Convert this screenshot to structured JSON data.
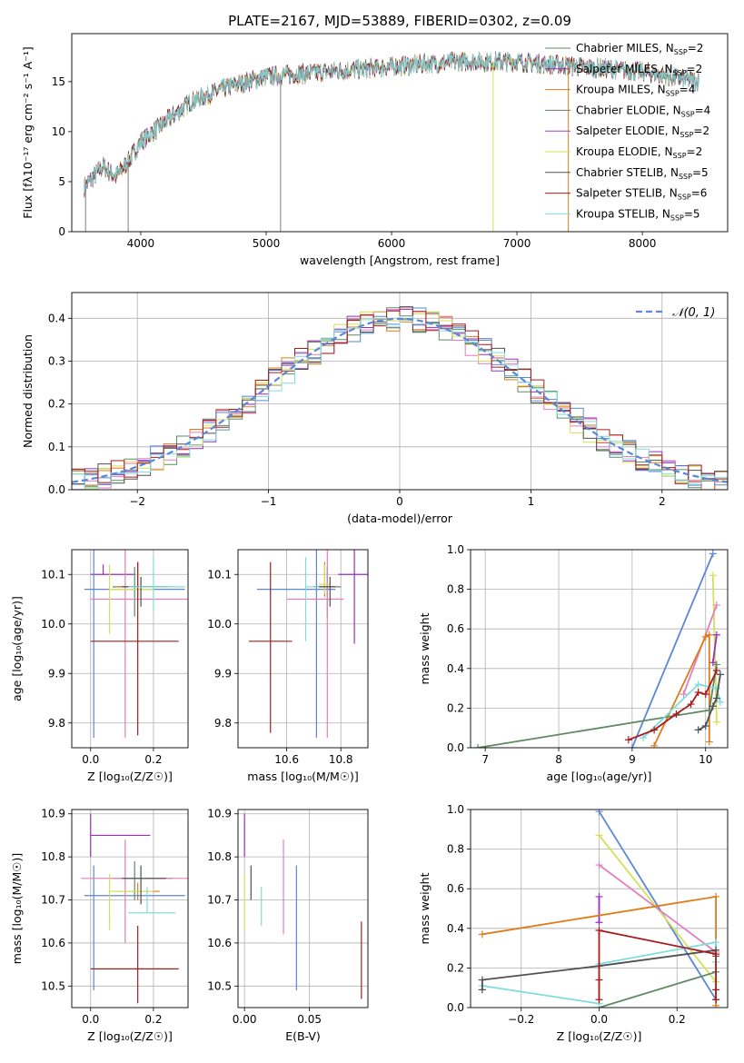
{
  "title": "PLATE=2167, MJD=53889, FIBERID=0302, z=0.09",
  "colors": {
    "Chabrier MILES": "#5e8a64",
    "Salpeter MILES": "#9b2fbf",
    "Kroupa MILES": "#e07b1a",
    "Chabrier ELODIE": "#5f8060",
    "Salpeter ELODIE": "#a23bc8",
    "Kroupa ELODIE": "#d4e05a",
    "Chabrier STELIB": "#505050",
    "Salpeter STELIB": "#a81c1c",
    "Kroupa STELIB": "#7fdcdc",
    "blue": "#5b87d6",
    "pink": "#e27fbf",
    "gray": "#808080"
  },
  "chart_data": [
    {
      "id": "spectrum",
      "type": "line",
      "xlabel": "wavelength [Angstrom, rest frame]",
      "ylabel": "Flux [fλ10⁻¹⁷ erg cm⁻² s⁻¹ A⁻¹]",
      "xlim": [
        3450,
        8680
      ],
      "ylim": [
        0,
        19.8
      ],
      "xticks": [
        4000,
        5000,
        6000,
        7000,
        8000
      ],
      "yticks": [
        0,
        5,
        10,
        15
      ],
      "grid": false,
      "legend_position": "right",
      "legend": [
        {
          "label": "Chabrier MILES, N",
          "sub": "SSP",
          "val": "=2"
        },
        {
          "label": "Salpeter MILES, N",
          "sub": "SSP",
          "val": "=2"
        },
        {
          "label": "Kroupa MILES, N",
          "sub": "SSP",
          "val": "=4"
        },
        {
          "label": "Chabrier ELODIE, N",
          "sub": "SSP",
          "val": "=4"
        },
        {
          "label": "Salpeter ELODIE, N",
          "sub": "SSP",
          "val": "=2"
        },
        {
          "label": "Kroupa ELODIE, N",
          "sub": "SSP",
          "val": "=2"
        },
        {
          "label": "Chabrier STELIB, N",
          "sub": "SSP",
          "val": "=5"
        },
        {
          "label": "Salpeter STELIB, N",
          "sub": "SSP",
          "val": "=6"
        },
        {
          "label": "Kroupa STELIB, N",
          "sub": "SSP",
          "val": "=5"
        }
      ],
      "continuum_anchors": [
        [
          3550,
          4.5
        ],
        [
          3700,
          6.5
        ],
        [
          3800,
          5.5
        ],
        [
          3900,
          7.0
        ],
        [
          4000,
          9.0
        ],
        [
          4200,
          11.0
        ],
        [
          4400,
          13.0
        ],
        [
          4700,
          14.5
        ],
        [
          5000,
          15.5
        ],
        [
          5500,
          16.0
        ],
        [
          6000,
          16.5
        ],
        [
          6500,
          17.0
        ],
        [
          7000,
          17.0
        ],
        [
          7500,
          16.5
        ],
        [
          8000,
          16.0
        ],
        [
          8450,
          15.0
        ]
      ],
      "spikes": [
        [
          5115,
          0
        ],
        [
          6810,
          0
        ],
        [
          7410,
          0
        ],
        [
          3900,
          0
        ],
        [
          3560,
          0
        ]
      ]
    },
    {
      "id": "residuals",
      "type": "line",
      "xlabel": "(data-model)/error",
      "ylabel": "Normed distribution",
      "xlim": [
        -2.5,
        2.5
      ],
      "ylim": [
        0,
        0.46
      ],
      "xticks": [
        -2,
        -1,
        0,
        1,
        2
      ],
      "yticks": [
        0.0,
        0.1,
        0.2,
        0.3,
        0.4
      ],
      "grid": true,
      "legend": "𝒩(0, 1)",
      "legend_position": "top-right",
      "gaussian": {
        "mean": 0,
        "sigma": 1
      }
    },
    {
      "id": "age_vs_Z",
      "type": "scatter",
      "xlabel": "Z [log₁₀(Z/Z☉)]",
      "ylabel": "age  [log₁₀(age/yr)]",
      "xlim": [
        -0.06,
        0.31
      ],
      "ylim": [
        9.75,
        10.15
      ],
      "xticks": [
        0.0,
        0.2
      ],
      "yticks": [
        9.8,
        9.9,
        10.0,
        10.1
      ],
      "grid": true,
      "points": [
        {
          "c": "Chabrier MILES",
          "x": 0.14,
          "xerr": [
            0.07,
            0.12
          ],
          "y": 10.075,
          "yerr": [
            0.06,
            0.04
          ]
        },
        {
          "c": "Salpeter MILES",
          "x": 0.04,
          "xerr": [
            0.04,
            0.1
          ],
          "y": 10.1,
          "yerr": [
            0.0,
            0.02
          ]
        },
        {
          "c": "Kroupa MILES",
          "x": 0.15,
          "xerr": [
            0.07,
            0.07
          ],
          "y": 10.075,
          "yerr": [
            0.02,
            0.05
          ]
        },
        {
          "c": "blue",
          "x": 0.01,
          "xerr": [
            0.03,
            0.29
          ],
          "y": 10.07,
          "yerr": [
            0.3,
            0.08
          ]
        },
        {
          "c": "pink",
          "x": 0.11,
          "xerr": [
            0.11,
            0.2
          ],
          "y": 10.05,
          "yerr": [
            0.28,
            0.1
          ]
        },
        {
          "c": "Kroupa ELODIE",
          "x": 0.06,
          "xerr": [
            0.0,
            0.14
          ],
          "y": 10.07,
          "yerr": [
            0.09,
            0.05
          ]
        },
        {
          "c": "Chabrier STELIB",
          "x": 0.16,
          "xerr": [
            0.06,
            0.08
          ],
          "y": 10.075,
          "yerr": [
            0.04,
            0.02
          ]
        },
        {
          "c": "Salpeter STELIB",
          "x": 0.15,
          "xerr": [
            0.15,
            0.13
          ],
          "y": 9.965,
          "yerr": [
            0.19,
            0.16
          ]
        },
        {
          "c": "Kroupa STELIB",
          "x": 0.2,
          "xerr": [
            0.08,
            0.1
          ],
          "y": 10.075,
          "yerr": [
            0.05,
            0.06
          ]
        }
      ]
    },
    {
      "id": "age_vs_mass",
      "type": "scatter",
      "xlabel": "mass [log₁₀(M/M☉)]",
      "ylabel": "",
      "xlim": [
        10.42,
        10.9
      ],
      "ylim": [
        9.75,
        10.15
      ],
      "xticks": [
        10.6,
        10.8
      ],
      "yticks": [
        9.8,
        9.9,
        10.0,
        10.1
      ],
      "grid": true,
      "points": [
        {
          "c": "Chabrier MILES",
          "x": 10.75,
          "xerr": [
            0.05,
            0.05
          ],
          "y": 10.075,
          "yerr": [
            0.06,
            0.04
          ]
        },
        {
          "c": "Salpeter MILES",
          "x": 10.85,
          "xerr": [
            0.06,
            0.05
          ],
          "y": 10.1,
          "yerr": [
            0.14,
            0.05
          ]
        },
        {
          "c": "Kroupa MILES",
          "x": 10.74,
          "xerr": [
            0.04,
            0.04
          ],
          "y": 10.075,
          "yerr": [
            0.02,
            0.05
          ]
        },
        {
          "c": "blue",
          "x": 10.71,
          "xerr": [
            0.22,
            0.07
          ],
          "y": 10.07,
          "yerr": [
            0.3,
            0.08
          ]
        },
        {
          "c": "pink",
          "x": 10.75,
          "xerr": [
            0.15,
            0.06
          ],
          "y": 10.05,
          "yerr": [
            0.28,
            0.1
          ]
        },
        {
          "c": "Kroupa ELODIE",
          "x": 10.74,
          "xerr": [
            0.02,
            0.02
          ],
          "y": 10.08,
          "yerr": [
            0.02,
            0.04
          ]
        },
        {
          "c": "Chabrier STELIB",
          "x": 10.76,
          "xerr": [
            0.06,
            0.02
          ],
          "y": 10.075,
          "yerr": [
            0.04,
            0.02
          ]
        },
        {
          "c": "Salpeter STELIB",
          "x": 10.54,
          "xerr": [
            0.08,
            0.08
          ],
          "y": 9.965,
          "yerr": [
            0.185,
            0.16
          ]
        },
        {
          "c": "Kroupa STELIB",
          "x": 10.67,
          "xerr": [
            0.0,
            0.05
          ],
          "y": 10.075,
          "yerr": [
            0.11,
            0.06
          ]
        }
      ]
    },
    {
      "id": "weight_vs_age",
      "type": "line",
      "xlabel": "age  [log₁₀(age/yr)]",
      "ylabel": "mass weight",
      "xlim": [
        6.8,
        10.3
      ],
      "ylim": [
        0,
        1
      ],
      "xticks": [
        7,
        8,
        9,
        10
      ],
      "yticks": [
        0.0,
        0.2,
        0.4,
        0.6,
        0.8,
        1.0
      ],
      "grid": true,
      "series": [
        {
          "c": "blue",
          "pts": [
            [
              9.0,
              0.0
            ],
            [
              10.1,
              0.98
            ]
          ]
        },
        {
          "c": "Kroupa ELODIE",
          "pts": [
            [
              10.1,
              0.87
            ],
            [
              10.15,
              0.13
            ]
          ]
        },
        {
          "c": "pink",
          "pts": [
            [
              9.7,
              0.27
            ],
            [
              10.15,
              0.72
            ]
          ]
        },
        {
          "c": "Salpeter MILES",
          "pts": [
            [
              10.1,
              0.43
            ],
            [
              10.15,
              0.57
            ]
          ]
        },
        {
          "c": "Kroupa MILES",
          "pts": [
            [
              9.3,
              0.01
            ],
            [
              10.0,
              0.56
            ],
            [
              10.05,
              0.57
            ],
            [
              10.05,
              0.03
            ]
          ]
        },
        {
          "c": "Chabrier MILES",
          "pts": [
            [
              6.9,
              0.0
            ],
            [
              10.05,
              0.19
            ],
            [
              10.15,
              0.42
            ]
          ]
        },
        {
          "c": "Kroupa STELIB",
          "pts": [
            [
              9.15,
              0.05
            ],
            [
              9.9,
              0.32
            ],
            [
              10.15,
              0.3
            ],
            [
              10.2,
              0.23
            ]
          ]
        },
        {
          "c": "Chabrier STELIB",
          "pts": [
            [
              9.9,
              0.09
            ],
            [
              10.0,
              0.11
            ],
            [
              10.1,
              0.21
            ],
            [
              10.15,
              0.25
            ],
            [
              10.2,
              0.37
            ]
          ]
        },
        {
          "c": "Salpeter STELIB",
          "pts": [
            [
              8.95,
              0.04
            ],
            [
              9.3,
              0.09
            ],
            [
              9.6,
              0.17
            ],
            [
              9.8,
              0.22
            ],
            [
              9.9,
              0.28
            ],
            [
              10.0,
              0.27
            ],
            [
              10.15,
              0.39
            ]
          ]
        }
      ]
    },
    {
      "id": "mass_vs_Z",
      "type": "scatter",
      "xlabel": "Z [log₁₀(Z/Z☉)]",
      "ylabel": "mass [log₁₀(M/M☉)]",
      "xlim": [
        -0.06,
        0.31
      ],
      "ylim": [
        10.45,
        10.91
      ],
      "xticks": [
        0.0,
        0.2
      ],
      "yticks": [
        10.5,
        10.6,
        10.7,
        10.8,
        10.9
      ],
      "grid": true,
      "points": [
        {
          "c": "Chabrier MILES",
          "x": 0.14,
          "xerr": [
            0.07,
            0.12
          ],
          "y": 10.75,
          "yerr": [
            0.05,
            0.04
          ]
        },
        {
          "c": "Salpeter MILES",
          "x": 0.0,
          "xerr": [
            0.0,
            0.19
          ],
          "y": 10.85,
          "yerr": [
            0.05,
            0.05
          ]
        },
        {
          "c": "Kroupa MILES",
          "x": 0.15,
          "xerr": [
            0.07,
            0.07
          ],
          "y": 10.72,
          "yerr": [
            0.02,
            0.02
          ]
        },
        {
          "c": "blue",
          "x": 0.01,
          "xerr": [
            0.03,
            0.29
          ],
          "y": 10.71,
          "yerr": [
            0.22,
            0.07
          ]
        },
        {
          "c": "pink",
          "x": 0.11,
          "xerr": [
            0.14,
            0.2
          ],
          "y": 10.75,
          "yerr": [
            0.15,
            0.09
          ]
        },
        {
          "c": "Kroupa ELODIE",
          "x": 0.06,
          "xerr": [
            0.0,
            0.14
          ],
          "y": 10.72,
          "yerr": [
            0.09,
            0.04
          ]
        },
        {
          "c": "Chabrier STELIB",
          "x": 0.16,
          "xerr": [
            0.06,
            0.08
          ],
          "y": 10.75,
          "yerr": [
            0.06,
            0.03
          ]
        },
        {
          "c": "Salpeter STELIB",
          "x": 0.15,
          "xerr": [
            0.15,
            0.13
          ],
          "y": 10.54,
          "yerr": [
            0.08,
            0.1
          ]
        },
        {
          "c": "Kroupa STELIB",
          "x": 0.18,
          "xerr": [
            0.06,
            0.09
          ],
          "y": 10.67,
          "yerr": [
            0.0,
            0.06
          ]
        }
      ]
    },
    {
      "id": "mass_vs_ebv",
      "type": "scatter",
      "xlabel": "E(B-V)",
      "ylabel": "",
      "xlim": [
        -0.005,
        0.095
      ],
      "ylim": [
        10.45,
        10.91
      ],
      "xticks": [
        0.0,
        0.05
      ],
      "yticks": [
        10.5,
        10.6,
        10.7,
        10.8,
        10.9
      ],
      "grid": true,
      "points": [
        {
          "c": "Salpeter MILES",
          "x": 0.0,
          "xerr": [
            0,
            0
          ],
          "y": 10.85,
          "yerr": [
            0.05,
            0.05
          ]
        },
        {
          "c": "Kroupa ELODIE",
          "x": 0.0,
          "xerr": [
            0,
            0
          ],
          "y": 10.7,
          "yerr": [
            0.07,
            0.06
          ]
        },
        {
          "c": "Chabrier STELIB",
          "x": 0.005,
          "xerr": [
            0,
            0
          ],
          "y": 10.75,
          "yerr": [
            0.05,
            0.03
          ]
        },
        {
          "c": "Kroupa STELIB",
          "x": 0.013,
          "xerr": [
            0,
            0
          ],
          "y": 10.69,
          "yerr": [
            0.05,
            0.04
          ]
        },
        {
          "c": "pink",
          "x": 0.03,
          "xerr": [
            0,
            0
          ],
          "y": 10.75,
          "yerr": [
            0.13,
            0.09
          ]
        },
        {
          "c": "blue",
          "x": 0.04,
          "xerr": [
            0,
            0
          ],
          "y": 10.64,
          "yerr": [
            0.15,
            0.14
          ]
        },
        {
          "c": "Salpeter STELIB",
          "x": 0.09,
          "xerr": [
            0,
            0
          ],
          "y": 10.56,
          "yerr": [
            0.09,
            0.09
          ]
        }
      ]
    },
    {
      "id": "weight_vs_Z",
      "type": "line",
      "xlabel": "Z [log₁₀(Z/Z☉)]",
      "ylabel": "mass weight",
      "xlim": [
        -0.33,
        0.33
      ],
      "ylim": [
        0,
        1
      ],
      "xticks": [
        -0.2,
        0.0,
        0.2
      ],
      "yticks": [
        0.0,
        0.2,
        0.4,
        0.6,
        0.8,
        1.0
      ],
      "grid": true,
      "series": [
        {
          "c": "blue",
          "pts": [
            [
              0.0,
              0.99
            ],
            [
              0.3,
              0.04
            ]
          ]
        },
        {
          "c": "Kroupa ELODIE",
          "pts": [
            [
              0.0,
              0.87
            ],
            [
              0.3,
              0.13
            ]
          ]
        },
        {
          "c": "pink",
          "pts": [
            [
              0.0,
              0.72
            ],
            [
              0.3,
              0.28
            ]
          ]
        },
        {
          "c": "Salpeter MILES",
          "pts": [
            [
              0.0,
              0.56
            ],
            [
              0.0,
              0.43
            ]
          ]
        },
        {
          "c": "Kroupa MILES",
          "pts": [
            [
              -0.3,
              0.37
            ],
            [
              0.3,
              0.56
            ],
            [
              0.3,
              0.01
            ]
          ]
        },
        {
          "c": "Chabrier MILES",
          "pts": [
            [
              0.0,
              0.0
            ],
            [
              0.3,
              0.18
            ]
          ]
        },
        {
          "c": "Kroupa STELIB",
          "pts": [
            [
              -0.3,
              0.11
            ],
            [
              0.0,
              0.02
            ],
            [
              0.0,
              0.22
            ],
            [
              0.3,
              0.33
            ],
            [
              0.3,
              0.23
            ]
          ]
        },
        {
          "c": "Chabrier STELIB",
          "pts": [
            [
              -0.3,
              0.09
            ],
            [
              -0.3,
              0.14
            ],
            [
              0.0,
              0.21
            ],
            [
              0.3,
              0.29
            ],
            [
              0.3,
              0.26
            ]
          ]
        },
        {
          "c": "Salpeter STELIB",
          "pts": [
            [
              0.0,
              0.04
            ],
            [
              0.0,
              0.14
            ],
            [
              0.0,
              0.39
            ],
            [
              0.3,
              0.27
            ],
            [
              0.3,
              0.09
            ],
            [
              0.3,
              0.04
            ]
          ]
        }
      ]
    }
  ]
}
